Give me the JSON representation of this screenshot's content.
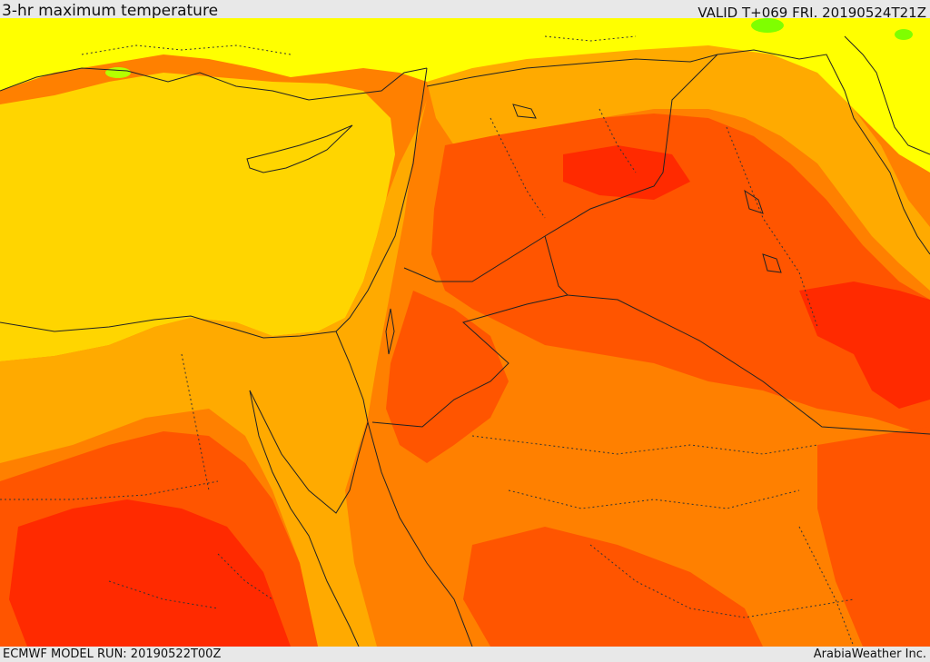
{
  "header": {
    "title": "3-hr maximum temperature",
    "valid": "VALID T+069 FRI. 20190524T21Z"
  },
  "footer": {
    "model_run": "ECMWF MODEL RUN: 20190522T00Z",
    "credit": "ArabiaWeather Inc."
  },
  "palette": {
    "light_yellow": "#ffff00",
    "yellow": "#ffd500",
    "amber": "#ffaa00",
    "orange": "#ff8000",
    "dark_orange": "#ff5500",
    "red": "#ff2a00",
    "green": "#7fff00"
  }
}
